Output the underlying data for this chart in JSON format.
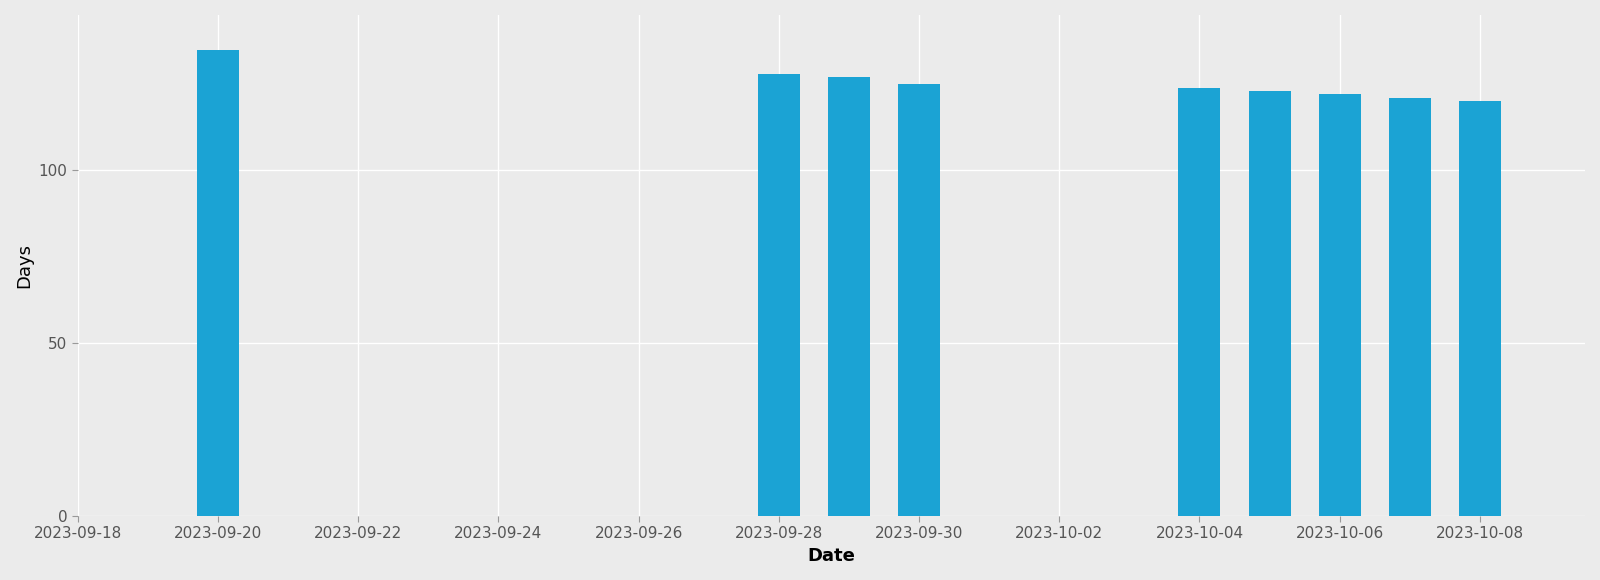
{
  "dates": [
    "2023-09-20",
    "2023-09-28",
    "2023-09-29",
    "2023-09-30",
    "2023-10-04",
    "2023-10-05",
    "2023-10-06",
    "2023-10-07",
    "2023-10-08"
  ],
  "values": [
    135,
    128,
    127,
    125,
    124,
    123,
    122,
    121,
    120
  ],
  "bar_color": "#1ba3d4",
  "background_color": "#ebebeb",
  "panel_color": "#ebebeb",
  "ylabel": "Days",
  "xlabel": "Date",
  "ylim": [
    0,
    145
  ],
  "yticks": [
    0,
    50,
    100
  ],
  "bar_width": 0.6,
  "grid_color": "#ffffff",
  "tick_color": "#555555",
  "label_fontsize": 13,
  "tick_fontsize": 11
}
